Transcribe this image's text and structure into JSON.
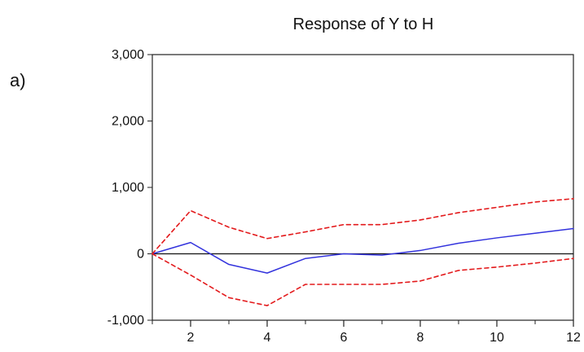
{
  "panel_label": "a)",
  "chart_data": {
    "type": "line",
    "title": "Response of Y to H",
    "xlabel": "",
    "ylabel": "",
    "x": [
      1,
      2,
      3,
      4,
      5,
      6,
      7,
      8,
      9,
      10,
      11,
      12
    ],
    "xlim": [
      1,
      12
    ],
    "ylim": [
      -1000,
      3000
    ],
    "x_ticks": [
      2,
      4,
      6,
      8,
      10,
      12
    ],
    "x_tick_labels": [
      "2",
      "4",
      "6",
      "8",
      "10",
      "12"
    ],
    "y_ticks": [
      -1000,
      0,
      1000,
      2000,
      3000
    ],
    "y_tick_labels": [
      "-1,000",
      "0",
      "1,000",
      "2,000",
      "3,000"
    ],
    "grid": false,
    "zero_line": true,
    "series": [
      {
        "style": "solid",
        "color": "#3333dd",
        "values": [
          0,
          170,
          -160,
          -290,
          -70,
          0,
          -20,
          50,
          160,
          240,
          310,
          380
        ]
      },
      {
        "style": "dashed",
        "color": "#e31a1c",
        "values": [
          0,
          650,
          400,
          230,
          330,
          440,
          440,
          510,
          620,
          700,
          780,
          830
        ]
      },
      {
        "style": "dashed",
        "color": "#e31a1c",
        "values": [
          0,
          -320,
          -660,
          -780,
          -460,
          -460,
          -460,
          -410,
          -250,
          -200,
          -140,
          -70
        ]
      }
    ]
  }
}
